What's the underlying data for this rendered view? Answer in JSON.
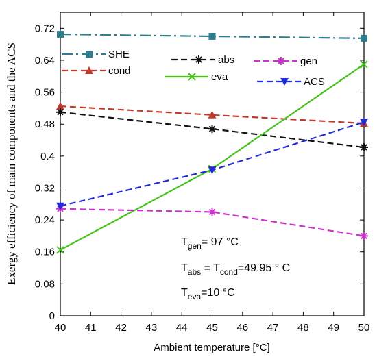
{
  "chart_data": {
    "type": "line",
    "title": "",
    "xlabel": "Ambient temperature [°C]",
    "ylabel": "Exergy efficiency of main components and the ACS",
    "xlim": [
      40,
      50
    ],
    "ylim": [
      0,
      0.76
    ],
    "xticks": [
      40,
      41,
      42,
      43,
      44,
      45,
      46,
      47,
      48,
      49,
      50
    ],
    "yticks": [
      0,
      0.08,
      0.16,
      0.24,
      0.32,
      0.4,
      0.48,
      0.56,
      0.64,
      0.72
    ],
    "ytick_labels": [
      "0",
      "0.08",
      "0.16",
      "0.24",
      "0.32",
      "0.4",
      "0.48",
      "0.56",
      "0.64",
      "0.72"
    ],
    "x": [
      40,
      45,
      50
    ],
    "grid": false,
    "legend_placement": "top",
    "series": [
      {
        "name": "SHE",
        "values": [
          0.705,
          0.7,
          0.695
        ],
        "color": "#2e7d8c",
        "marker": "square",
        "dash": "long-dash-dot"
      },
      {
        "name": "cond",
        "values": [
          0.525,
          0.503,
          0.482
        ],
        "color": "#c0392b",
        "marker": "triangle-up",
        "dash": "dash"
      },
      {
        "name": "abs",
        "values": [
          0.51,
          0.468,
          0.422
        ],
        "color": "#111111",
        "marker": "star",
        "dash": "dash"
      },
      {
        "name": "eva",
        "values": [
          0.165,
          0.368,
          0.63
        ],
        "color": "#44c21a",
        "marker": "x",
        "dash": "solid"
      },
      {
        "name": "gen",
        "values": [
          0.268,
          0.26,
          0.2
        ],
        "color": "#cc33cc",
        "marker": "star",
        "dash": "dash"
      },
      {
        "name": "ACS",
        "values": [
          0.275,
          0.365,
          0.485
        ],
        "color": "#1f2bd6",
        "marker": "triangle-down",
        "dash": "dash"
      }
    ]
  },
  "annotations": {
    "gen": {
      "base": "T",
      "sub": "gen",
      "rest": "= 97 °C"
    },
    "abs": {
      "base": "T",
      "sub": "abs",
      "mid": " = T",
      "sub2": "cond",
      "rest": "=49.95 ° C"
    },
    "eva": {
      "base": "T",
      "sub": "eva",
      "rest": "=10 °C"
    }
  }
}
